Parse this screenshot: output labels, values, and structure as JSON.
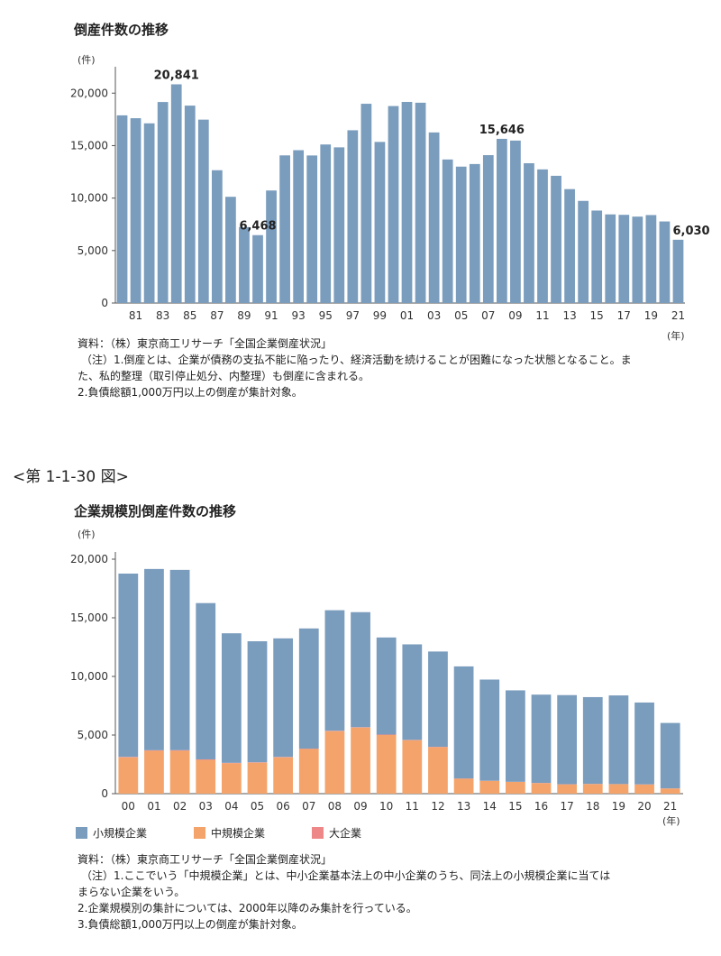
{
  "chart1": {
    "title": "倒産件数の推移",
    "unit": "(件)",
    "year_unit": "(年)",
    "source": "資料：（株）東京商工リサーチ「全国企業倒産状況」",
    "notes": [
      "（注）1.倒産とは、企業が債務の支払不能に陥ったり、経済活動を続けることが困難になった状態となること。ま",
      "た、私的整理（取引停止処分、内整理）も倒産に含まれる。",
      "2.負債総額1,000万円以上の倒産が集計対象。"
    ],
    "colors": {
      "bar": "#7a9cbd",
      "axis": "#555555"
    }
  },
  "figure_label": "<第 1-1-30 図>",
  "chart2": {
    "title": "企業規模別倒産件数の推移",
    "unit": "(件)",
    "year_unit": "(年)",
    "legend": [
      "小規模企業",
      "中規模企業",
      "大企業"
    ],
    "source": "資料：（株）東京商工リサーチ「全国企業倒産状況」",
    "notes": [
      "（注）1.ここでいう「中規模企業」とは、中小企業基本法上の中小企業のうち、同法上の小規模企業に当ては",
      "まらない企業をいう。",
      "2.企業規模別の集計については、2000年以降のみ集計を行っている。",
      "3.負債総額1,000万円以上の倒産が集計対象。"
    ],
    "colors": {
      "small": "#7a9cbd",
      "medium": "#f4a46a",
      "large": "#ee8888"
    }
  },
  "chart_data": [
    {
      "type": "bar",
      "title": "倒産件数の推移",
      "ylabel": "(件)",
      "xlabel": "(年)",
      "ylim": [
        0,
        22000
      ],
      "yticks": [
        0,
        5000,
        10000,
        15000,
        20000
      ],
      "ytick_labels": [
        "0",
        "5,000",
        "10,000",
        "15,000",
        "20,000"
      ],
      "categories": [
        "80",
        "81",
        "82",
        "83",
        "84",
        "85",
        "86",
        "87",
        "88",
        "89",
        "90",
        "91",
        "92",
        "93",
        "94",
        "95",
        "96",
        "97",
        "98",
        "99",
        "00",
        "01",
        "02",
        "03",
        "04",
        "05",
        "06",
        "07",
        "08",
        "09",
        "10",
        "11",
        "12",
        "13",
        "14",
        "15",
        "16",
        "17",
        "18",
        "19",
        "20",
        "21"
      ],
      "xtick_labels": [
        "81",
        "83",
        "85",
        "87",
        "89",
        "91",
        "93",
        "95",
        "97",
        "99",
        "01",
        "03",
        "05",
        "07",
        "09",
        "11",
        "13",
        "15",
        "17",
        "19",
        "21"
      ],
      "values": [
        17884,
        17610,
        17122,
        19155,
        20841,
        18812,
        17476,
        12655,
        10122,
        7234,
        6468,
        10723,
        14069,
        14564,
        14061,
        15108,
        14834,
        16464,
        18988,
        15352,
        18769,
        19164,
        19087,
        16255,
        13679,
        12998,
        13245,
        14091,
        15646,
        15480,
        13321,
        12734,
        12124,
        10855,
        9731,
        8812,
        8446,
        8405,
        8235,
        8383,
        7773,
        6030
      ],
      "annotations": [
        {
          "category": "84",
          "label": "20,841"
        },
        {
          "category": "90",
          "label": "6,468"
        },
        {
          "category": "08",
          "label": "15,646"
        },
        {
          "category": "21",
          "label": "6,030"
        }
      ]
    },
    {
      "type": "bar",
      "stacked": true,
      "title": "企業規模別倒産件数の推移",
      "ylabel": "(件)",
      "xlabel": "(年)",
      "ylim": [
        0,
        20000
      ],
      "yticks": [
        0,
        5000,
        10000,
        15000,
        20000
      ],
      "ytick_labels": [
        "0",
        "5,000",
        "10,000",
        "15,000",
        "20,000"
      ],
      "categories": [
        "00",
        "01",
        "02",
        "03",
        "04",
        "05",
        "06",
        "07",
        "08",
        "09",
        "10",
        "11",
        "12",
        "13",
        "14",
        "15",
        "16",
        "17",
        "18",
        "19",
        "20",
        "21"
      ],
      "series": [
        {
          "name": "小規模企業",
          "values": [
            15630,
            15460,
            15380,
            13330,
            11050,
            10320,
            10110,
            10250,
            10280,
            9810,
            8280,
            8150,
            8130,
            9560,
            8630,
            7800,
            7530,
            7600,
            7400,
            7560,
            6980,
            5580
          ]
        },
        {
          "name": "中規模企業",
          "values": [
            3100,
            3660,
            3660,
            2880,
            2590,
            2640,
            3100,
            3810,
            5330,
            5640,
            5000,
            4560,
            3970,
            1270,
            1090,
            1000,
            900,
            790,
            820,
            810,
            780,
            440
          ]
        },
        {
          "name": "大企業",
          "values": [
            39,
            44,
            47,
            45,
            39,
            38,
            35,
            31,
            36,
            30,
            41,
            24,
            24,
            25,
            11,
            12,
            16,
            15,
            15,
            9,
            13,
            10
          ]
        }
      ]
    }
  ]
}
